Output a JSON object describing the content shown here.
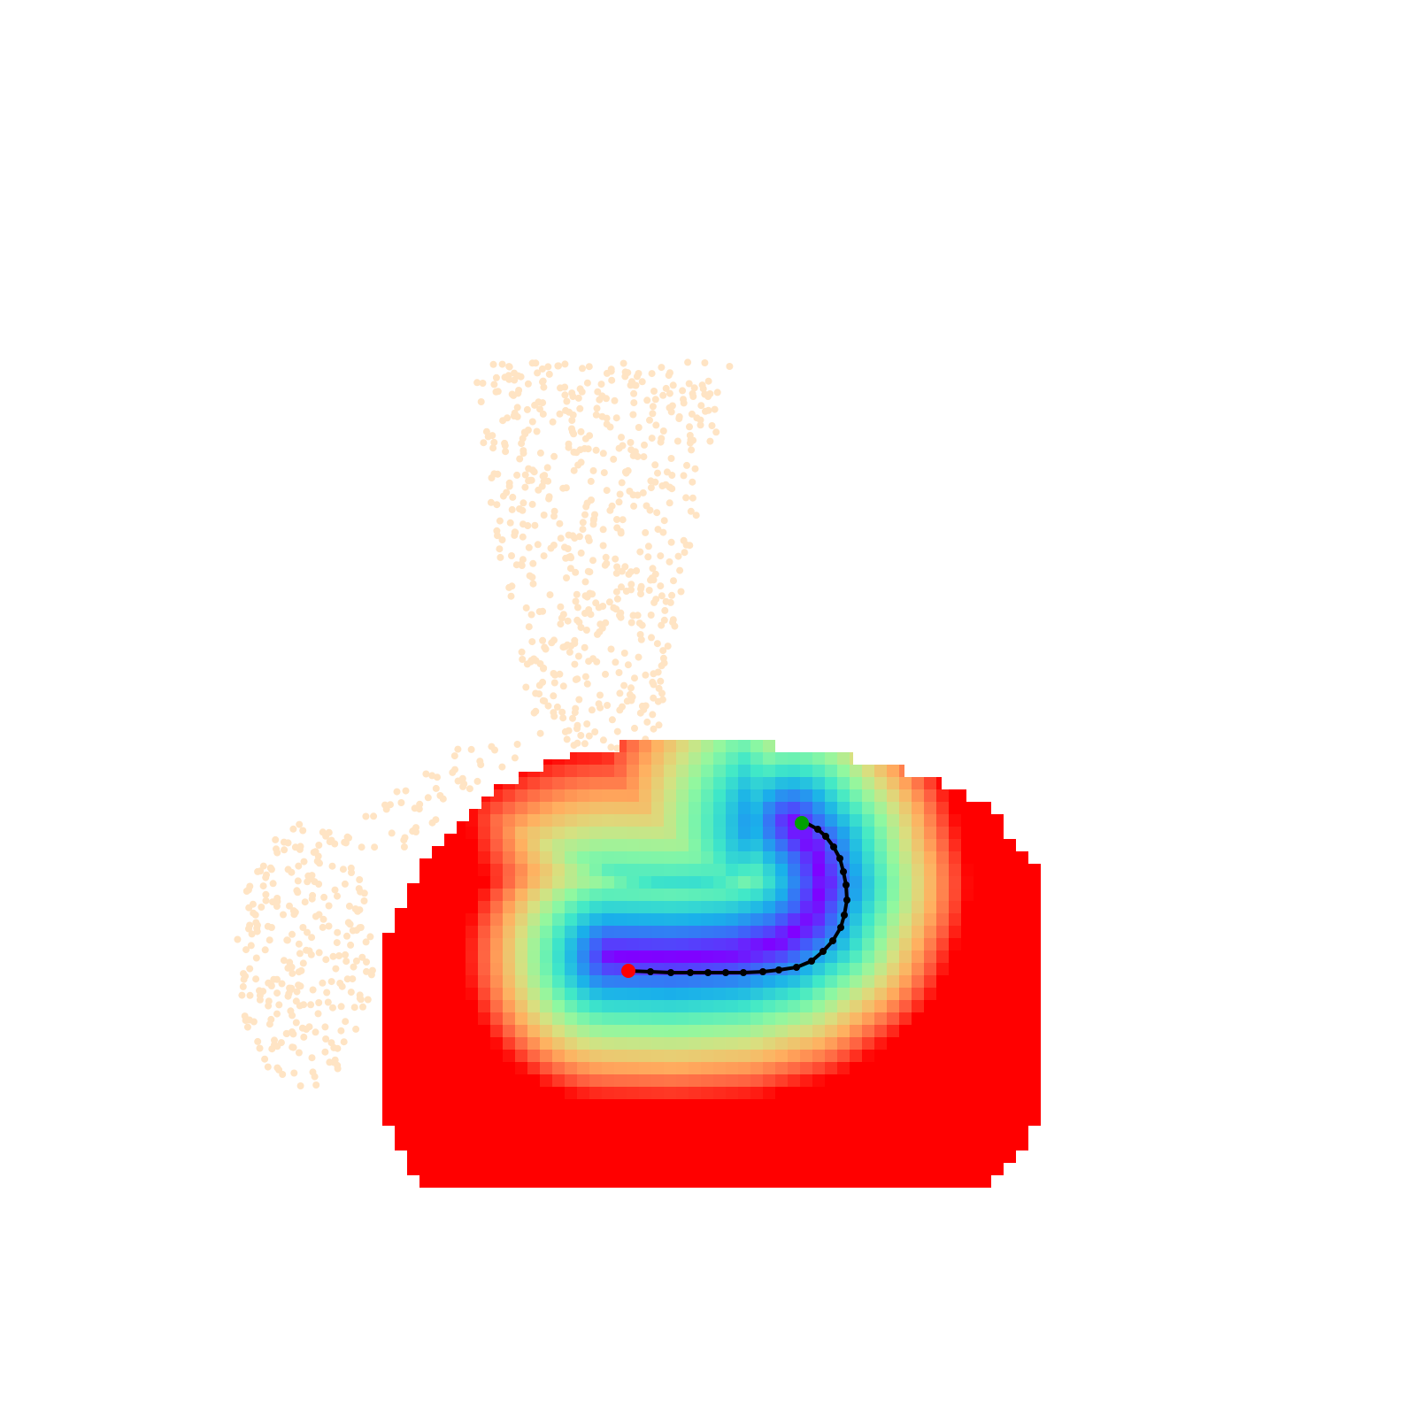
{
  "colors": {
    "background": "#ffffff",
    "point_cloud": "#ffe4c4",
    "path": "#000000",
    "start_marker": "#ff0000",
    "end_marker": "#00a000",
    "colormap": [
      "#8000ff",
      "#4060fa",
      "#1ab0ea",
      "#40e8c8",
      "#90f8a0",
      "#d8e080",
      "#ffb060",
      "#ff6040",
      "#ff0000"
    ]
  },
  "scene": {
    "type": "distance-field heatmap with point cloud and trajectory",
    "has_axes": false,
    "has_legend": false,
    "has_text": false
  }
}
